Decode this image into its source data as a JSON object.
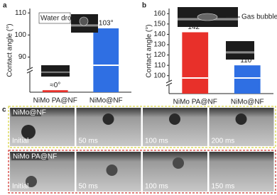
{
  "chart_data": [
    {
      "type": "bar",
      "panel_label": "a",
      "ylabel": "Contact angle (°)",
      "categories": [
        "NiMo PA@NF",
        "NiMo@NF"
      ],
      "values": [
        1,
        103
      ],
      "value_labels": [
        "≈0°",
        "103°"
      ],
      "colors": [
        "#e8302a",
        "#2f6fe3"
      ],
      "ylim": [
        0,
        112
      ],
      "ybreak": [
        10,
        85
      ],
      "yticks": [
        90,
        100,
        110
      ],
      "annotations": [
        "Water drop"
      ]
    },
    {
      "type": "bar",
      "panel_label": "b",
      "ylabel": "Contact angle (°)",
      "categories": [
        "NiMo PA@NF",
        "NiMo@NF"
      ],
      "values": [
        142,
        110
      ],
      "value_labels": [
        "142°",
        "110°"
      ],
      "colors": [
        "#e8302a",
        "#2f6fe3"
      ],
      "ylim": [
        0,
        165
      ],
      "ybreak": [
        5,
        95
      ],
      "yticks": [
        100,
        110,
        120,
        130,
        140,
        150,
        160
      ],
      "annotations": [
        "Gas bubble"
      ]
    }
  ],
  "panel_c": {
    "panel_label": "c",
    "rows": [
      {
        "sample": "NiMo@NF",
        "frames": [
          "Initial",
          "50 ms",
          "100 ms",
          "200 ms"
        ]
      },
      {
        "sample": "NiMo PA@NF",
        "frames": [
          "Initial",
          "50 ms",
          "100 ms",
          "150 ms"
        ]
      }
    ]
  }
}
